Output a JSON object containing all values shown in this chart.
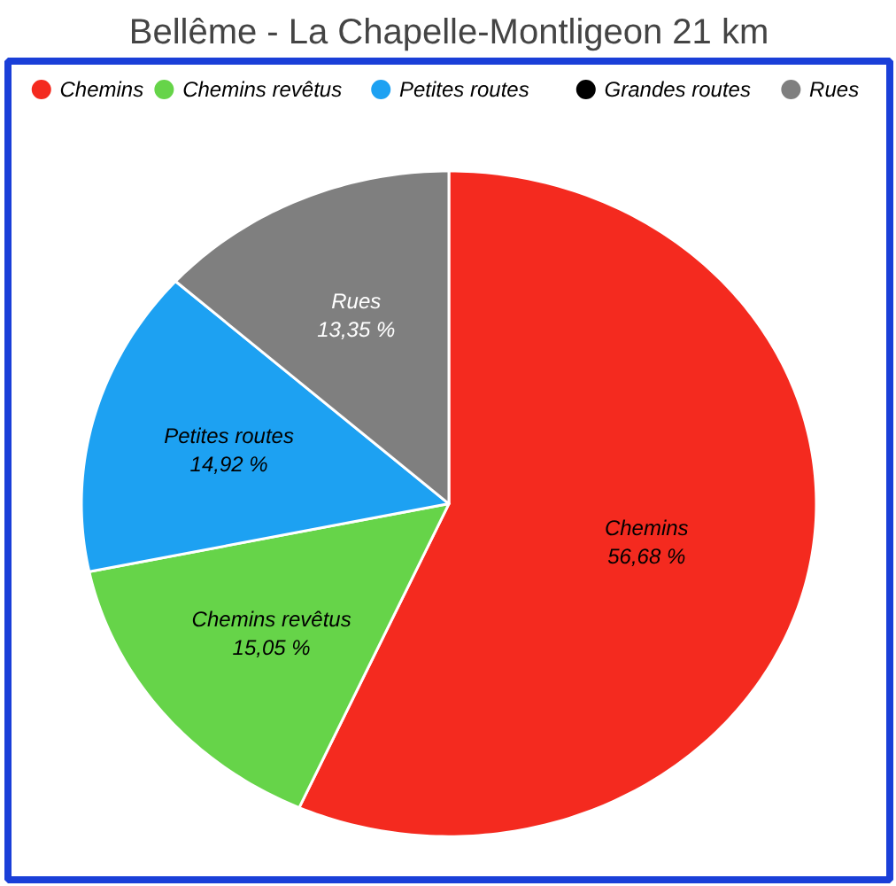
{
  "chart_data": {
    "type": "pie",
    "title": "Bellême - La Chapelle-Montligeon 21 km",
    "categories": [
      "Chemins",
      "Chemins revêtus",
      "Petites routes",
      "Grandes routes",
      "Rues"
    ],
    "values": [
      56.68,
      15.05,
      14.92,
      0,
      13.35
    ],
    "value_labels": [
      "56,68 %",
      "15,05 %",
      "14,92 %",
      null,
      "13,35 %"
    ],
    "colors": [
      "#f42a1f",
      "#66d449",
      "#1da1f2",
      "#000000",
      "#7f7f7f"
    ],
    "legend": "top"
  }
}
